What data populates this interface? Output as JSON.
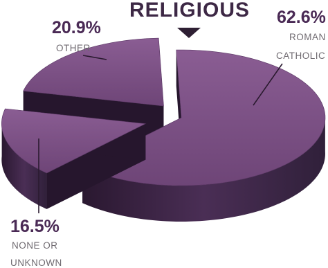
{
  "chart_data": {
    "type": "pie",
    "title": "RELIGIOUS",
    "slices": [
      {
        "label_lines": [
          "ROMAN",
          "CATHOLIC"
        ],
        "value": 62.6,
        "value_label": "62.6%"
      },
      {
        "label_lines": [
          "NONE OR",
          "UNKNOWN"
        ],
        "value": 16.5,
        "value_label": "16.5%"
      },
      {
        "label_lines": [
          "OTHER"
        ],
        "value": 20.9,
        "value_label": "20.9%"
      }
    ],
    "colors": {
      "top": "#7b4f84",
      "side": "#3c2646",
      "side_dark": "#26162d",
      "title": "#3d2845",
      "percent": "#4a2a55",
      "category": "#6f6a70",
      "leader_line": "#2a1a2f"
    }
  }
}
